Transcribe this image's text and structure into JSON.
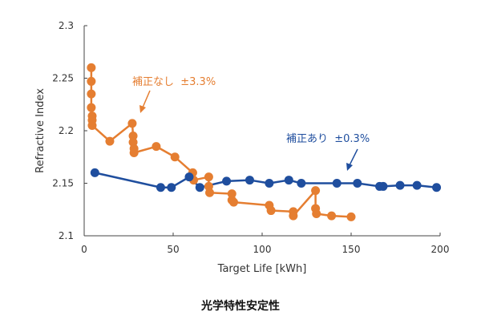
{
  "chart_data": {
    "type": "line",
    "title": "光学特性安定性",
    "xlabel": "Target Life [kWh]",
    "ylabel": "Refractive Index",
    "xlim": [
      0,
      200
    ],
    "ylim": [
      2.1,
      2.3
    ],
    "xticks": [
      "0",
      "50",
      "100",
      "150",
      "200"
    ],
    "yticks": [
      "2.1",
      "2.15",
      "2.2",
      "2.25",
      "2.3"
    ],
    "grid": false,
    "series": [
      {
        "name": "補正なし",
        "annotation": "補正なし  ±3.3%",
        "color": "#E57E31",
        "x": [
          4,
          4,
          4,
          4,
          4.5,
          4.5,
          4.5,
          14.4,
          27,
          27.5,
          27.5,
          28,
          28,
          40.5,
          51,
          61,
          61.5,
          70,
          70,
          70.5,
          83,
          83,
          84,
          104,
          105,
          117.5,
          117.5,
          130,
          130,
          130.5,
          139,
          150
        ],
        "y": [
          2.26,
          2.247,
          2.235,
          2.222,
          2.214,
          2.21,
          2.205,
          2.19,
          2.207,
          2.195,
          2.189,
          2.183,
          2.179,
          2.185,
          2.175,
          2.16,
          2.153,
          2.156,
          2.147,
          2.141,
          2.14,
          2.134,
          2.132,
          2.129,
          2.124,
          2.123,
          2.119,
          2.143,
          2.126,
          2.121,
          2.119,
          2.118
        ]
      },
      {
        "name": "補正あり",
        "annotation": "補正あり  ±0.3%",
        "color": "#1F4E9E",
        "x": [
          6,
          43,
          49,
          59,
          65,
          80,
          93,
          104,
          115,
          122,
          142,
          153.5,
          166,
          168,
          177.5,
          187,
          198
        ],
        "y": [
          2.16,
          2.146,
          2.146,
          2.156,
          2.146,
          2.152,
          2.153,
          2.15,
          2.153,
          2.15,
          2.15,
          2.15,
          2.147,
          2.147,
          2.148,
          2.148,
          2.146
        ]
      }
    ]
  }
}
